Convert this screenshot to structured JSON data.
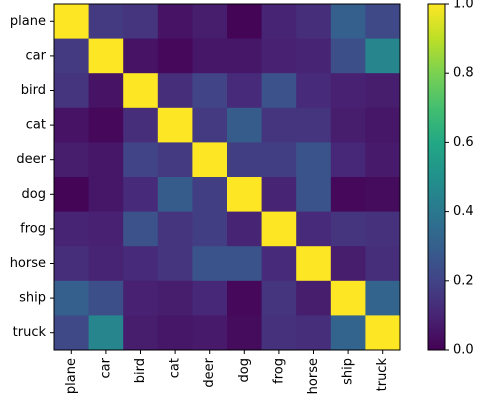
{
  "chart_data": {
    "type": "heatmap",
    "title": "",
    "xlabel": "",
    "ylabel": "",
    "labels": [
      "plane",
      "car",
      "bird",
      "cat",
      "deer",
      "dog",
      "frog",
      "horse",
      "ship",
      "truck"
    ],
    "x_tick_rotation": 90,
    "values": [
      [
        1.0,
        0.17,
        0.15,
        0.05,
        0.08,
        0.01,
        0.1,
        0.13,
        0.3,
        0.22
      ],
      [
        0.17,
        1.0,
        0.05,
        0.02,
        0.06,
        0.06,
        0.09,
        0.1,
        0.24,
        0.45
      ],
      [
        0.15,
        0.05,
        1.0,
        0.13,
        0.2,
        0.12,
        0.25,
        0.12,
        0.09,
        0.08
      ],
      [
        0.05,
        0.02,
        0.13,
        1.0,
        0.17,
        0.29,
        0.15,
        0.15,
        0.08,
        0.06
      ],
      [
        0.08,
        0.06,
        0.2,
        0.17,
        1.0,
        0.18,
        0.18,
        0.26,
        0.11,
        0.07
      ],
      [
        0.01,
        0.06,
        0.12,
        0.29,
        0.18,
        1.0,
        0.1,
        0.26,
        0.02,
        0.03
      ],
      [
        0.1,
        0.09,
        0.25,
        0.15,
        0.18,
        0.1,
        1.0,
        0.12,
        0.15,
        0.14
      ],
      [
        0.13,
        0.1,
        0.12,
        0.15,
        0.26,
        0.26,
        0.12,
        1.0,
        0.08,
        0.13
      ],
      [
        0.3,
        0.24,
        0.09,
        0.08,
        0.11,
        0.02,
        0.15,
        0.08,
        1.0,
        0.32
      ],
      [
        0.22,
        0.45,
        0.08,
        0.06,
        0.07,
        0.03,
        0.14,
        0.13,
        0.32,
        1.0
      ]
    ],
    "colormap": "viridis",
    "vmin": 0.0,
    "vmax": 1.0,
    "colorbar_ticks": [
      "0.0",
      "0.2",
      "0.4",
      "0.6",
      "0.8",
      "1.0"
    ],
    "colorbar_tick_values": [
      0.0,
      0.2,
      0.4,
      0.6,
      0.8,
      1.0
    ],
    "colorbar_position": "right",
    "grid": false
  }
}
